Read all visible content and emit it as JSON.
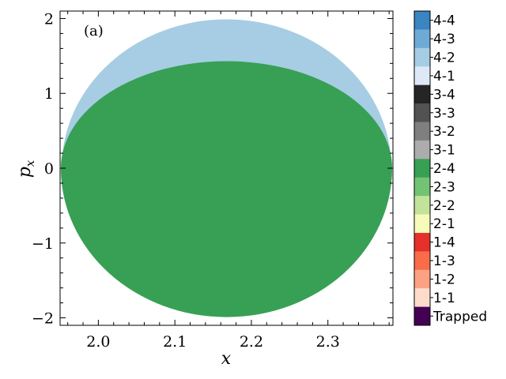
{
  "chart_data": {
    "type": "area",
    "panel_label": "(a)",
    "xlabel": "x",
    "ylabel_base": "p",
    "ylabel_sub": "x",
    "xlim": [
      1.95,
      2.385
    ],
    "ylim": [
      -2.1,
      2.1
    ],
    "xticks": [
      {
        "value": 2.0,
        "label": "2.0"
      },
      {
        "value": 2.1,
        "label": "2.1"
      },
      {
        "value": 2.2,
        "label": "2.2"
      },
      {
        "value": 2.3,
        "label": "2.3"
      }
    ],
    "yticks": [
      {
        "value": 2,
        "label": "2"
      },
      {
        "value": 1,
        "label": "1"
      },
      {
        "value": 0,
        "label": "0"
      },
      {
        "value": -1,
        "label": "−1"
      },
      {
        "value": -2,
        "label": "−2"
      }
    ],
    "regions": [
      {
        "category": "4-2",
        "color": "#a6cde3",
        "x_range": [
          1.952,
          2.383
        ],
        "center_x": 2.167,
        "px_max": 1.99,
        "px_min": 0.0
      },
      {
        "category": "2-4",
        "color": "#37a055",
        "x_range": [
          1.951,
          2.384
        ],
        "center_x": 2.167,
        "px_max": 1.43,
        "px_min": -1.99
      }
    ],
    "colorbar": [
      {
        "label": "4-4",
        "color": "#3a85c1"
      },
      {
        "label": "4-3",
        "color": "#6eaad6"
      },
      {
        "label": "4-2",
        "color": "#a6cde3"
      },
      {
        "label": "4-1",
        "color": "#dde9f6"
      },
      {
        "label": "3-4",
        "color": "#252525"
      },
      {
        "label": "3-3",
        "color": "#525252"
      },
      {
        "label": "3-2",
        "color": "#7f7f7f"
      },
      {
        "label": "3-1",
        "color": "#acacac"
      },
      {
        "label": "2-4",
        "color": "#37a055"
      },
      {
        "label": "2-3",
        "color": "#73c375"
      },
      {
        "label": "2-2",
        "color": "#c2e399"
      },
      {
        "label": "2-1",
        "color": "#f6fbb9"
      },
      {
        "label": "1-4",
        "color": "#e5302b"
      },
      {
        "label": "1-3",
        "color": "#f86c4a"
      },
      {
        "label": "1-2",
        "color": "#fca282"
      },
      {
        "label": "1-1",
        "color": "#fedccc"
      },
      {
        "label": "Trapped",
        "color": "#440154"
      }
    ]
  }
}
